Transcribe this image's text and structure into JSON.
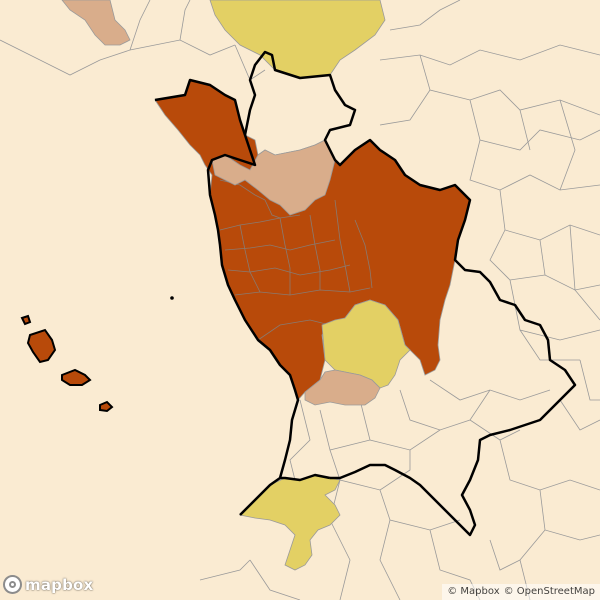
{
  "map": {
    "colors": {
      "background": "#faebd2",
      "sea": "#faebd2",
      "boundary_thin": "#9a9a9a",
      "boundary_thick": "#000000",
      "high": "#b84a0a",
      "low": "#d9ad8b",
      "medium": "#e3d064"
    },
    "regions": [
      {
        "name": "main-region-dark",
        "category": "high"
      },
      {
        "name": "north-region-tan",
        "category": "low"
      },
      {
        "name": "northwest-region-tan",
        "category": "low"
      },
      {
        "name": "north-region-yellow",
        "category": "medium"
      },
      {
        "name": "central-region-yellow",
        "category": "medium"
      },
      {
        "name": "south-region-tan",
        "category": "low"
      },
      {
        "name": "south-region-yellow",
        "category": "medium"
      },
      {
        "name": "island-dark",
        "category": "high"
      }
    ]
  },
  "logo": {
    "text": "mapbox",
    "icon": "mapbox-logo-icon"
  },
  "attribution": {
    "mapbox": "© Mapbox",
    "osm": "© OpenStreetMap"
  }
}
